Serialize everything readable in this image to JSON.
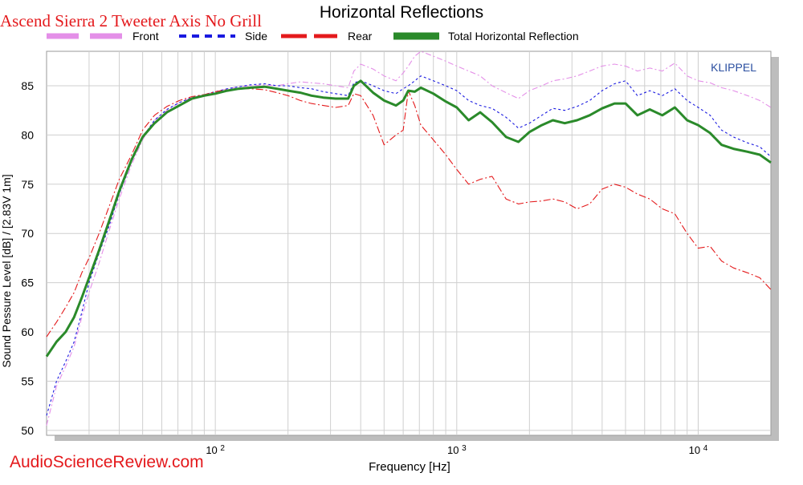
{
  "overlay_title": "Ascend Sierra 2 Tweeter Axis No Grill",
  "watermark": "AudioScienceReview.com",
  "brand": "KLIPPEL",
  "colors": {
    "front": "#e48fe8",
    "side": "#1a1ae0",
    "rear": "#e41a1c",
    "total": "#2a8a2a",
    "overlay_text": "#e4191c",
    "brand": "#2b4fa0"
  },
  "chart_data": {
    "type": "line",
    "title": "Horizontal Reflections",
    "xlabel": "Frequency [Hz]",
    "ylabel": "Sound Pessure Level [dB]  / [2.83V 1m]",
    "xscale": "log",
    "xlim": [
      20,
      20000
    ],
    "ylim": [
      49.5,
      88.5
    ],
    "grid": true,
    "legend_position": "top",
    "x_ticks": [
      {
        "value": 100,
        "base": "10",
        "exp": "2"
      },
      {
        "value": 1000,
        "base": "10",
        "exp": "3"
      },
      {
        "value": 10000,
        "base": "10",
        "exp": "4"
      }
    ],
    "y_ticks": [
      50,
      55,
      60,
      65,
      70,
      75,
      80,
      85
    ],
    "x": [
      20,
      22,
      24,
      26,
      28,
      30,
      33,
      36,
      40,
      45,
      50,
      56,
      63,
      71,
      80,
      90,
      100,
      112,
      125,
      140,
      160,
      180,
      200,
      225,
      250,
      280,
      315,
      355,
      375,
      400,
      450,
      500,
      560,
      600,
      630,
      670,
      710,
      800,
      900,
      1000,
      1120,
      1250,
      1400,
      1600,
      1800,
      2000,
      2250,
      2500,
      2800,
      3150,
      3550,
      4000,
      4500,
      5000,
      5600,
      6300,
      7100,
      8000,
      9000,
      10000,
      11200,
      12500,
      14000,
      16000,
      18000,
      20000
    ],
    "series": [
      {
        "name": "Front",
        "style": "dash-dot",
        "values": [
          50.5,
          54.5,
          56.5,
          58.5,
          61.5,
          64,
          67,
          70,
          73.5,
          77,
          79.5,
          81.5,
          82.5,
          83.3,
          83.8,
          84.1,
          84.4,
          84.7,
          84.9,
          85,
          85.1,
          85,
          85.2,
          85.4,
          85.3,
          85.2,
          85,
          84.8,
          86.5,
          87.2,
          86.7,
          86,
          85.5,
          86.3,
          87,
          88,
          88.5,
          88,
          87.5,
          87,
          86.5,
          86,
          85,
          84.3,
          83.7,
          84.5,
          85,
          85.5,
          85.7,
          86,
          86.5,
          87,
          87.2,
          87,
          86.5,
          86.8,
          86.5,
          87.3,
          86,
          85.5,
          85.3,
          84.8,
          84.5,
          84,
          83.5,
          82.8
        ]
      },
      {
        "name": "Side",
        "style": "dashed",
        "values": [
          51.5,
          55,
          57,
          59,
          62,
          65,
          68,
          70.5,
          74,
          77.3,
          79.8,
          81.5,
          82.6,
          83.3,
          83.8,
          84.1,
          84.4,
          84.7,
          84.9,
          85.1,
          85.2,
          85,
          85,
          84.8,
          84.7,
          84.4,
          84.2,
          84,
          85.3,
          85.5,
          85,
          84.5,
          84.2,
          84.7,
          85,
          85.5,
          86,
          85.5,
          85,
          84.5,
          83.5,
          83,
          82.7,
          81.8,
          80.7,
          81.2,
          82,
          82.7,
          82.5,
          82.9,
          83.5,
          84.5,
          85.2,
          85.5,
          84,
          84.5,
          84,
          84.7,
          83.5,
          82.8,
          82,
          80.5,
          79.8,
          79.2,
          78.8,
          77.8
        ]
      },
      {
        "name": "Rear",
        "style": "long-dash-dot",
        "values": [
          59.5,
          61,
          62.5,
          64,
          66,
          67.5,
          70,
          72.5,
          75.5,
          78,
          80.5,
          82,
          82.9,
          83.5,
          83.9,
          84.1,
          84.4,
          84.6,
          84.7,
          84.7,
          84.6,
          84.3,
          84,
          83.5,
          83.2,
          83,
          82.8,
          83,
          84.2,
          84,
          82,
          79,
          80,
          80.5,
          84.5,
          83,
          81,
          79.5,
          78,
          76.5,
          75,
          75.5,
          75.8,
          73.5,
          73,
          73.2,
          73.3,
          73.5,
          73.2,
          72.5,
          73,
          74.5,
          75,
          74.7,
          74,
          73.5,
          72.5,
          72,
          70,
          68.5,
          68.7,
          67.2,
          66.5,
          66,
          65.5,
          64.3
        ]
      },
      {
        "name": "Total Horizontal Reflection",
        "style": "solid-thick",
        "values": [
          57.5,
          59,
          60,
          61.5,
          63.5,
          65.5,
          68.3,
          71,
          74.3,
          77.5,
          79.8,
          81.2,
          82.3,
          83,
          83.7,
          84,
          84.2,
          84.5,
          84.7,
          84.8,
          84.9,
          84.7,
          84.5,
          84.3,
          84,
          83.8,
          83.7,
          83.7,
          85,
          85.5,
          84.3,
          83.5,
          83,
          83.5,
          84.5,
          84.4,
          84.8,
          84.2,
          83.4,
          82.8,
          81.5,
          82.3,
          81.3,
          79.8,
          79.3,
          80.3,
          81,
          81.5,
          81.2,
          81.5,
          82,
          82.7,
          83.2,
          83.2,
          82,
          82.6,
          82,
          82.8,
          81.5,
          81,
          80.2,
          79,
          78.6,
          78.3,
          78,
          77.2
        ]
      }
    ]
  }
}
